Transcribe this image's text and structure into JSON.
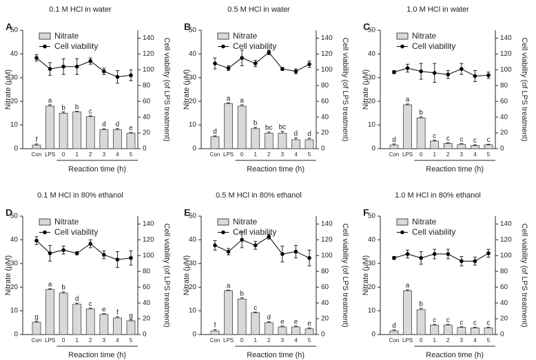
{
  "chart_data": [
    {
      "type": "bar_line",
      "panel": "A",
      "title": "0.1 M HCl in water",
      "categories": [
        "Con",
        "LPS",
        "0",
        "1",
        "2",
        "3",
        "4",
        "5"
      ],
      "xgroup_label": "Reaction time (h)",
      "ylabel": "Nitrate (μM)",
      "y2label": "Cell viability (of LPS treatment)",
      "ylim": [
        0,
        50
      ],
      "yticks": [
        0,
        10,
        20,
        30,
        40,
        50
      ],
      "y2lim": [
        0,
        150
      ],
      "y2ticks": [
        0,
        20,
        40,
        60,
        80,
        100,
        120,
        140
      ],
      "series": [
        {
          "name": "Nitrate",
          "color": "#d9d9d9",
          "values": [
            1.5,
            18,
            15,
            15.5,
            13.5,
            8,
            8,
            6.5
          ],
          "errors": [
            0.5,
            0.5,
            0.5,
            0.3,
            0.4,
            0.4,
            0.5,
            0.4
          ]
        },
        {
          "name": "Cell viability",
          "color": "#000000",
          "axis": "y2",
          "values": [
            115,
            101,
            104,
            104,
            111,
            98,
            91,
            93
          ],
          "errors": [
            4,
            8,
            10,
            10,
            4,
            4,
            8,
            7
          ]
        }
      ],
      "annotations": [
        "f",
        "a",
        "b",
        "b",
        "c",
        "d",
        "d",
        "e"
      ]
    },
    {
      "type": "bar_line",
      "panel": "B",
      "title": "0.5 M HCl in water",
      "categories": [
        "Con",
        "LPS",
        "0",
        "1",
        "2",
        "3",
        "4",
        "5"
      ],
      "xgroup_label": "Reaction time (h)",
      "ylabel": "Nitrate (μM)",
      "y2label": "Cell viability (of LPS treatment)",
      "ylim": [
        0,
        50
      ],
      "yticks": [
        0,
        10,
        20,
        30,
        40,
        50
      ],
      "y2lim": [
        0,
        150
      ],
      "y2ticks": [
        0,
        20,
        40,
        60,
        80,
        100,
        120,
        140
      ],
      "series": [
        {
          "name": "Nitrate",
          "color": "#d9d9d9",
          "values": [
            5,
            19,
            18,
            8.5,
            6.5,
            6.5,
            3.8,
            3.8
          ],
          "errors": [
            0.4,
            0.4,
            0.5,
            0.5,
            0.5,
            0.8,
            0.8,
            0.6
          ]
        },
        {
          "name": "Cell viability",
          "color": "#000000",
          "axis": "y2",
          "values": [
            108,
            102,
            115,
            108,
            122,
            101,
            98,
            107
          ],
          "errors": [
            7,
            3,
            10,
            4,
            3,
            2,
            3,
            4
          ]
        }
      ],
      "annotations": [
        "d",
        "a",
        "a",
        "b",
        "bc",
        "bc",
        "d",
        "d"
      ]
    },
    {
      "type": "bar_line",
      "panel": "C",
      "title": "1.0 M HCl in water",
      "categories": [
        "Con",
        "LPS",
        "0",
        "1",
        "2",
        "3",
        "4",
        "5"
      ],
      "xgroup_label": "Reaction time (h)",
      "ylabel": "Nitrate (μM)",
      "y2label": "Cell viability (of LPS treatment)",
      "ylim": [
        0,
        50
      ],
      "yticks": [
        0,
        10,
        20,
        30,
        40,
        50
      ],
      "y2lim": [
        0,
        150
      ],
      "y2ticks": [
        0,
        20,
        40,
        60,
        80,
        100,
        120,
        140
      ],
      "series": [
        {
          "name": "Nitrate",
          "color": "#d9d9d9",
          "values": [
            1.5,
            18.5,
            13,
            3.2,
            2.2,
            1.8,
            1.3,
            1.6
          ],
          "errors": [
            0.5,
            0.4,
            0.4,
            0.4,
            0.3,
            0.3,
            0.3,
            0.3
          ]
        },
        {
          "name": "Cell viability",
          "color": "#000000",
          "axis": "y2",
          "values": [
            97,
            102,
            98,
            96,
            94,
            101,
            92,
            93
          ],
          "errors": [
            2,
            5,
            10,
            12,
            5,
            7,
            7,
            4
          ]
        }
      ],
      "annotations": [
        "d",
        "a",
        "b",
        "c",
        "c",
        "c",
        "c",
        "c"
      ]
    },
    {
      "type": "bar_line",
      "panel": "D",
      "title": "0.1 M HCl in 80% ethanol",
      "categories": [
        "Con",
        "LPS",
        "0",
        "1",
        "2",
        "3",
        "4",
        "5"
      ],
      "xgroup_label": "Reaction time (h)",
      "ylabel": "Nitrate (μM)",
      "y2label": "Cell viability (of LPS treatment)",
      "ylim": [
        0,
        50
      ],
      "yticks": [
        0,
        10,
        20,
        30,
        40,
        50
      ],
      "y2lim": [
        0,
        150
      ],
      "y2ticks": [
        0,
        20,
        40,
        60,
        80,
        100,
        120,
        140
      ],
      "series": [
        {
          "name": "Nitrate",
          "color": "#d9d9d9",
          "values": [
            5.2,
            19,
            17.5,
            12.8,
            10.8,
            8.5,
            7,
            5.8
          ],
          "errors": [
            0.3,
            0.3,
            0.5,
            0.5,
            0.3,
            0.3,
            0.5,
            0.4
          ]
        },
        {
          "name": "Cell viability",
          "color": "#000000",
          "axis": "y2",
          "values": [
            119,
            103,
            107,
            103,
            115,
            101,
            95,
            97
          ],
          "errors": [
            5,
            10,
            5,
            2,
            5,
            5,
            10,
            9
          ]
        }
      ],
      "annotations": [
        "g",
        "a",
        "b",
        "d",
        "c",
        "e",
        "f",
        "g"
      ]
    },
    {
      "type": "bar_line",
      "panel": "E",
      "title": "0.5 M HCl in 80% ethanol",
      "categories": [
        "Con",
        "LPS",
        "0",
        "1",
        "2",
        "3",
        "4",
        "5"
      ],
      "xgroup_label": "Reaction time (h)",
      "ylabel": "Nitrate (μM)",
      "y2label": "Cell viability (of LPS treatment)",
      "ylim": [
        0,
        50
      ],
      "yticks": [
        0,
        10,
        20,
        30,
        40,
        50
      ],
      "y2lim": [
        0,
        150
      ],
      "y2ticks": [
        0,
        20,
        40,
        60,
        80,
        100,
        120,
        140
      ],
      "series": [
        {
          "name": "Nitrate",
          "color": "#d9d9d9",
          "values": [
            1.5,
            18.5,
            15,
            9.2,
            5,
            3.2,
            3.2,
            2.4
          ],
          "errors": [
            0.6,
            0.3,
            0.5,
            0.3,
            0.4,
            0.4,
            0.4,
            0.4
          ]
        },
        {
          "name": "Cell viability",
          "color": "#000000",
          "axis": "y2",
          "values": [
            113,
            105,
            120,
            113,
            124,
            102,
            105,
            97
          ],
          "errors": [
            6,
            4,
            10,
            5,
            3,
            10,
            8,
            10
          ]
        }
      ],
      "annotations": [
        "f",
        "a",
        "b",
        "c",
        "d",
        "e",
        "e",
        "e"
      ]
    },
    {
      "type": "bar_line",
      "panel": "F",
      "title": "1.0 M HCl in 80% ethanol",
      "categories": [
        "Con",
        "LPS",
        "0",
        "1",
        "2",
        "3",
        "4",
        "5"
      ],
      "xgroup_label": "Reaction time (h)",
      "ylabel": "Nitrate (μM)",
      "y2label": "Cell viability (of LPS treatment)",
      "ylim": [
        0,
        50
      ],
      "yticks": [
        0,
        10,
        20,
        30,
        40,
        50
      ],
      "y2lim": [
        0,
        150
      ],
      "y2ticks": [
        0,
        20,
        40,
        60,
        80,
        100,
        120,
        140
      ],
      "series": [
        {
          "name": "Nitrate",
          "color": "#d9d9d9",
          "values": [
            1.5,
            18.5,
            10.5,
            4,
            4,
            3,
            2.8,
            2.8
          ],
          "errors": [
            0.5,
            0.4,
            0.6,
            0.3,
            0.3,
            0.3,
            0.3,
            0.3
          ]
        },
        {
          "name": "Cell viability",
          "color": "#000000",
          "axis": "y2",
          "values": [
            97,
            102,
            97,
            102,
            102,
            93,
            93,
            103
          ],
          "errors": [
            2,
            5,
            8,
            6,
            6,
            6,
            5,
            5
          ]
        }
      ],
      "annotations": [
        "d",
        "a",
        "b",
        "c",
        "c",
        "c",
        "c",
        "c"
      ]
    }
  ]
}
